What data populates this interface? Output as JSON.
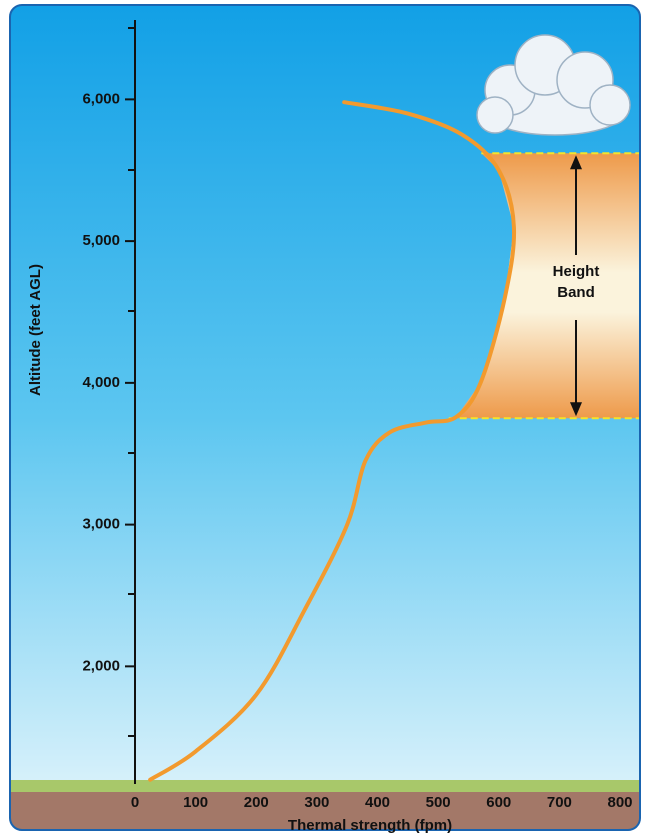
{
  "chart_data": {
    "type": "line",
    "x_label": "Thermal strength (fpm)",
    "y_label": "Altitude (feet AGL)",
    "annotation": "Height\nBand",
    "band": [
      3750,
      5620
    ],
    "xlim": [
      0,
      800
    ],
    "ylim": [
      1170,
      6560
    ],
    "xticks": [
      0,
      100,
      200,
      300,
      400,
      500,
      600,
      700,
      800
    ],
    "yticks": [
      {
        "value": 2000,
        "label": "2,000"
      },
      {
        "value": 3000,
        "label": "3,000"
      },
      {
        "value": 4000,
        "label": "4,000"
      },
      {
        "value": 5000,
        "label": "5,000"
      },
      {
        "value": 6000,
        "label": "6,000"
      }
    ],
    "color": "#f29a2e",
    "x": [
      25,
      100,
      200,
      280,
      350,
      380,
      420,
      480,
      530,
      570,
      610,
      625,
      600,
      540,
      450,
      345
    ],
    "values": [
      1200,
      1400,
      1800,
      2400,
      3000,
      3450,
      3650,
      3720,
      3760,
      4000,
      4600,
      5100,
      5500,
      5750,
      5900,
      5980
    ]
  }
}
